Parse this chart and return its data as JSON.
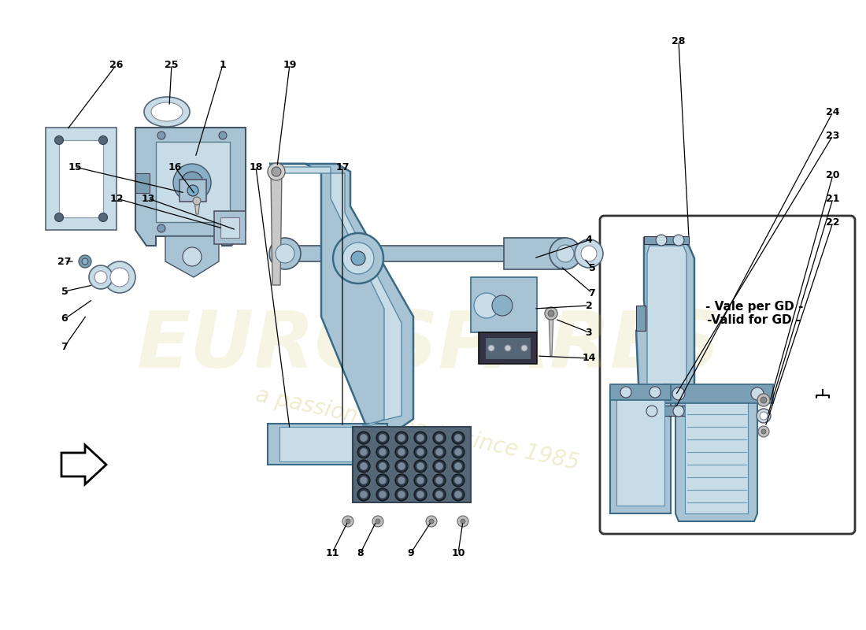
{
  "bg_color": "#ffffff",
  "parts_color": "#a8c4d4",
  "parts_color_dark": "#7a9fb5",
  "parts_color_light": "#c8dce8",
  "watermark_text": "a passion for parts since 1985",
  "watermark_color": "#d4c870",
  "watermark2_text": "eurospares",
  "vale_per_gd": "- Vale per GD -\n-Valid for GD -",
  "label_data": [
    [
      26,
      148,
      718,
      85,
      635
    ],
    [
      25,
      218,
      718,
      215,
      665
    ],
    [
      1,
      283,
      718,
      248,
      600
    ],
    [
      19,
      368,
      718,
      352,
      588
    ],
    [
      27,
      82,
      468,
      95,
      468
    ],
    [
      5,
      82,
      430,
      118,
      438
    ],
    [
      6,
      82,
      395,
      118,
      420
    ],
    [
      7,
      82,
      360,
      110,
      400
    ],
    [
      12,
      148,
      548,
      283,
      510
    ],
    [
      13,
      188,
      548,
      300,
      508
    ],
    [
      15,
      95,
      588,
      235,
      555
    ],
    [
      16,
      222,
      588,
      248,
      553
    ],
    [
      18,
      325,
      588,
      368,
      255
    ],
    [
      17,
      435,
      588,
      435,
      258
    ],
    [
      4,
      748,
      495,
      678,
      472
    ],
    [
      5,
      752,
      460,
      742,
      472
    ],
    [
      7,
      752,
      428,
      712,
      462
    ],
    [
      2,
      748,
      412,
      678,
      408
    ],
    [
      3,
      748,
      378,
      705,
      395
    ],
    [
      14,
      748,
      345,
      682,
      348
    ],
    [
      8,
      458,
      98,
      478,
      138
    ],
    [
      9,
      522,
      98,
      548,
      138
    ],
    [
      10,
      582,
      98,
      588,
      138
    ],
    [
      11,
      422,
      98,
      442,
      138
    ],
    [
      28,
      862,
      748,
      875,
      498
    ],
    [
      24,
      1058,
      658,
      858,
      282
    ],
    [
      23,
      1058,
      628,
      858,
      298
    ],
    [
      20,
      1058,
      578,
      978,
      290
    ],
    [
      21,
      1058,
      548,
      975,
      272
    ],
    [
      22,
      1058,
      518,
      972,
      258
    ]
  ]
}
